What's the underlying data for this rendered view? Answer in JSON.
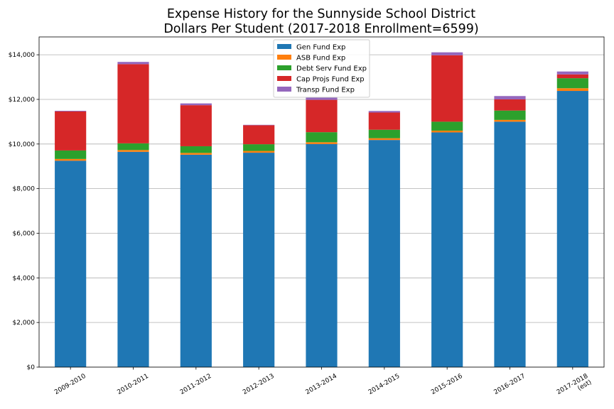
{
  "chart_data": {
    "type": "bar",
    "stacked": true,
    "title": "Expense History for the Sunnyside School District",
    "subtitle": "Dollars Per Student (2017-2018 Enrollment=6599)",
    "xlabel": "",
    "ylabel": "",
    "ylim": [
      0,
      14800
    ],
    "yticks": [
      0,
      2000,
      4000,
      6000,
      8000,
      10000,
      12000,
      14000
    ],
    "ytick_labels": [
      "$0",
      "$2,000",
      "$4,000",
      "$6,000",
      "$8,000",
      "$10,000",
      "$12,000",
      "$14,000"
    ],
    "grid": "horizontal",
    "legend_position": "top-center",
    "categories": [
      "2009-2010",
      "2010-2011",
      "2011-2012",
      "2012-2013",
      "2013-2014",
      "2014-2015",
      "2015-2016",
      "2016-2017",
      "2017-2018\n(est)"
    ],
    "series": [
      {
        "name": "Gen Fund Exp",
        "color": "#1f77b4",
        "values": [
          9250,
          9650,
          9520,
          9610,
          10000,
          10180,
          10520,
          11000,
          12380
        ]
      },
      {
        "name": "ASB Fund Exp",
        "color": "#ff7f0e",
        "values": [
          80,
          80,
          80,
          80,
          80,
          80,
          80,
          80,
          120
        ]
      },
      {
        "name": "Debt Serv Fund Exp",
        "color": "#2ca02c",
        "values": [
          380,
          300,
          300,
          300,
          450,
          380,
          400,
          420,
          450
        ]
      },
      {
        "name": "Cap Projs Fund Exp",
        "color": "#d62728",
        "values": [
          1750,
          3550,
          1840,
          850,
          1450,
          770,
          2980,
          500,
          170
        ]
      },
      {
        "name": "Transp Fund Exp",
        "color": "#9467bd",
        "values": [
          30,
          100,
          80,
          20,
          100,
          70,
          130,
          150,
          130
        ]
      }
    ]
  }
}
